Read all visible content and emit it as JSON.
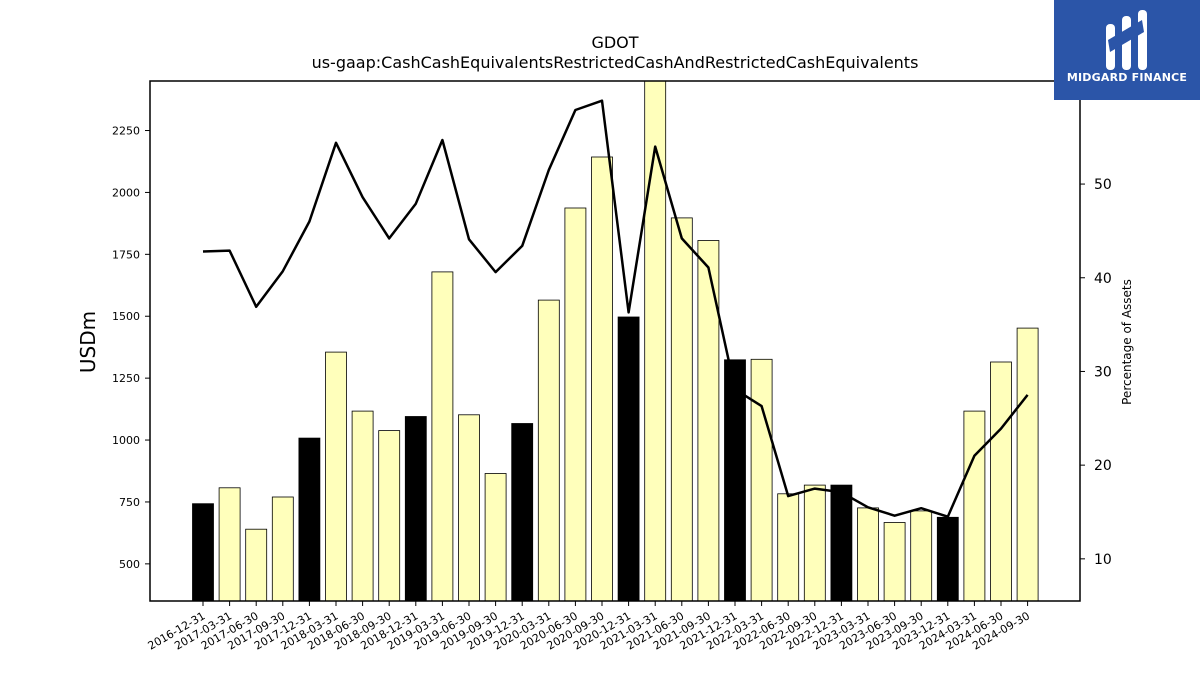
{
  "brand": {
    "name": "MIDGARD FINANCE",
    "color": "#2b55a8"
  },
  "chart_data": {
    "type": "bar",
    "title": "GDOT",
    "subtitle": "us-gaap:CashCashEquivalentsRestrictedCashAndRestrictedCashEquivalents",
    "ylabel": "USDm",
    "y2label": "Percentage of Assets",
    "ylim": [
      350,
      2450
    ],
    "y2lim": [
      5.5,
      61
    ],
    "yticks": [
      500,
      750,
      1000,
      1250,
      1500,
      1750,
      2000,
      2250
    ],
    "y2ticks": [
      10,
      20,
      30,
      40,
      50
    ],
    "grid": false,
    "colors": {
      "bar_regular": "#ffffbb",
      "bar_year_end": "#000000",
      "line": "#000000"
    },
    "categories": [
      "2016-12-31",
      "2017-03-31",
      "2017-06-30",
      "2017-09-30",
      "2017-12-31",
      "2018-03-31",
      "2018-06-30",
      "2018-09-30",
      "2018-12-31",
      "2019-03-31",
      "2019-06-30",
      "2019-09-30",
      "2019-12-31",
      "2020-03-31",
      "2020-06-30",
      "2020-09-30",
      "2020-12-31",
      "2021-03-31",
      "2021-06-30",
      "2021-09-30",
      "2021-12-31",
      "2022-03-31",
      "2022-06-30",
      "2022-09-30",
      "2022-12-31",
      "2023-03-31",
      "2023-06-30",
      "2023-09-30",
      "2023-12-31",
      "2024-03-31",
      "2024-06-30",
      "2024-09-30"
    ],
    "series": [
      {
        "kind": "bar",
        "axis": "left",
        "values": [
          743,
          807,
          640,
          770,
          1008,
          1355,
          1117,
          1038,
          1095,
          1679,
          1102,
          865,
          1067,
          1565,
          1937,
          2143,
          1497,
          2450,
          1897,
          1806,
          1324,
          1326,
          783,
          818,
          818,
          726,
          667,
          714,
          688,
          1117,
          1315,
          1452
        ]
      },
      {
        "kind": "line",
        "axis": "right",
        "values": [
          42.8,
          42.9,
          36.9,
          40.7,
          46.0,
          54.4,
          48.6,
          44.2,
          47.9,
          54.7,
          44.1,
          40.6,
          43.4,
          51.5,
          57.9,
          58.9,
          36.3,
          54.0,
          44.2,
          41.1,
          28.1,
          26.3,
          16.7,
          17.5,
          17.1,
          15.5,
          14.6,
          15.4,
          14.5,
          21.0,
          23.9,
          27.5
        ]
      }
    ]
  }
}
